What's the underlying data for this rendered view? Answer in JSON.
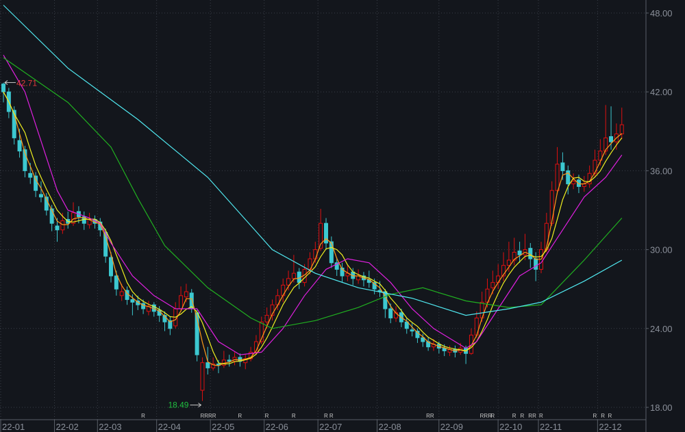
{
  "chart_data": {
    "type": "candlestick",
    "ylim": [
      18,
      48
    ],
    "y_ticks": [
      "48.00",
      "42.00",
      "36.00",
      "30.00",
      "24.00",
      "18.00"
    ],
    "y_tick_values": [
      48,
      42,
      36,
      30,
      24,
      18
    ],
    "grid": true,
    "x_ticks": [
      {
        "label": "22-01",
        "at": 0
      },
      {
        "label": "22-02",
        "at": 10
      },
      {
        "label": "22-03",
        "at": 18
      },
      {
        "label": "22-04",
        "at": 29
      },
      {
        "label": "22-05",
        "at": 39
      },
      {
        "label": "22-06",
        "at": 49
      },
      {
        "label": "22-07",
        "at": 59
      },
      {
        "label": "22-08",
        "at": 70
      },
      {
        "label": "22-09",
        "at": 81.5
      },
      {
        "label": "22-10",
        "at": 92.5
      },
      {
        "label": "22-11",
        "at": 100
      },
      {
        "label": "22-12",
        "at": 111
      }
    ],
    "colors": {
      "background": "#13161c",
      "up": "#e01010",
      "down": "#3cc8d0",
      "grid": "#3a3f48",
      "axis": "#5a5f68",
      "high_label": "#e03a3a",
      "low_label": "#20c040"
    },
    "annotations": {
      "high": {
        "text": "42.71",
        "value": 42.71,
        "at": 0
      },
      "low": {
        "text": "18.49",
        "value": 18.49,
        "at": 37
      }
    },
    "candles_ohlc": [
      [
        42.6,
        42.71,
        41.2,
        42.0
      ],
      [
        42.0,
        42.3,
        40.0,
        40.5
      ],
      [
        40.6,
        40.9,
        38.0,
        38.5
      ],
      [
        38.3,
        39.2,
        37.0,
        37.5
      ],
      [
        37.6,
        37.9,
        35.5,
        36.0
      ],
      [
        35.8,
        36.6,
        35.0,
        35.5
      ],
      [
        35.6,
        35.9,
        34.0,
        34.5
      ],
      [
        34.2,
        35.2,
        33.6,
        34.0
      ],
      [
        34.0,
        34.3,
        32.6,
        33.0
      ],
      [
        33.1,
        33.4,
        31.4,
        32.0
      ],
      [
        31.8,
        32.4,
        30.6,
        31.5
      ],
      [
        31.5,
        32.8,
        31.2,
        32.2
      ],
      [
        32.3,
        32.9,
        31.6,
        32.0
      ],
      [
        32.0,
        33.6,
        31.8,
        32.8
      ],
      [
        32.9,
        33.3,
        32.0,
        32.5
      ],
      [
        32.5,
        32.9,
        31.5,
        32.0
      ],
      [
        31.9,
        32.8,
        31.6,
        32.3
      ],
      [
        32.3,
        32.6,
        31.6,
        32.0
      ],
      [
        32.1,
        32.4,
        31.0,
        31.5
      ],
      [
        31.3,
        31.6,
        29.0,
        29.5
      ],
      [
        29.4,
        29.8,
        27.5,
        28.0
      ],
      [
        28.0,
        28.4,
        26.5,
        27.0
      ],
      [
        26.5,
        27.4,
        26.1,
        26.8
      ],
      [
        26.9,
        27.2,
        25.8,
        26.2
      ],
      [
        26.2,
        26.6,
        25.0,
        26.0
      ],
      [
        26.1,
        26.5,
        25.4,
        25.8
      ],
      [
        25.9,
        26.2,
        25.1,
        25.5
      ],
      [
        25.3,
        26.1,
        25.0,
        25.7
      ],
      [
        25.8,
        26.0,
        24.9,
        25.3
      ],
      [
        25.4,
        25.7,
        24.5,
        25.0
      ],
      [
        25.0,
        25.3,
        23.8,
        24.5
      ],
      [
        24.6,
        24.9,
        23.5,
        24.0
      ],
      [
        24.2,
        26.0,
        24.0,
        25.5
      ],
      [
        25.5,
        27.2,
        25.3,
        26.5
      ],
      [
        26.4,
        27.4,
        26.0,
        26.8
      ],
      [
        26.7,
        27.0,
        25.2,
        25.5
      ],
      [
        25.2,
        25.4,
        21.5,
        22.0
      ],
      [
        19.3,
        21.8,
        18.49,
        21.4
      ],
      [
        21.4,
        22.6,
        20.5,
        21.0
      ],
      [
        21.0,
        21.8,
        20.8,
        21.3
      ],
      [
        21.3,
        21.6,
        20.6,
        21.2
      ],
      [
        21.2,
        22.3,
        21.0,
        21.6
      ],
      [
        21.6,
        22.0,
        21.1,
        21.5
      ],
      [
        21.5,
        22.2,
        21.2,
        21.8
      ],
      [
        21.8,
        22.1,
        21.1,
        21.5
      ],
      [
        21.4,
        22.0,
        20.9,
        21.7
      ],
      [
        21.7,
        22.6,
        21.5,
        22.2
      ],
      [
        22.2,
        23.5,
        22.0,
        23.0
      ],
      [
        23.0,
        24.9,
        22.8,
        24.5
      ],
      [
        24.5,
        25.6,
        24.0,
        25.0
      ],
      [
        25.0,
        26.2,
        24.6,
        25.8
      ],
      [
        25.8,
        27.0,
        25.4,
        26.5
      ],
      [
        26.5,
        27.8,
        26.0,
        27.3
      ],
      [
        27.3,
        28.4,
        26.9,
        27.8
      ],
      [
        27.8,
        29.6,
        27.5,
        28.2
      ],
      [
        28.3,
        28.6,
        27.0,
        27.5
      ],
      [
        27.5,
        28.9,
        27.2,
        28.5
      ],
      [
        28.5,
        29.8,
        28.1,
        29.3
      ],
      [
        29.3,
        30.6,
        29.0,
        30.0
      ],
      [
        30.1,
        33.1,
        29.9,
        32.0
      ],
      [
        32.0,
        32.4,
        30.0,
        30.5
      ],
      [
        30.6,
        31.0,
        28.6,
        29.0
      ],
      [
        29.0,
        29.4,
        28.0,
        28.5
      ],
      [
        28.6,
        29.0,
        27.5,
        28.0
      ],
      [
        28.0,
        28.8,
        27.6,
        28.2
      ],
      [
        28.3,
        28.6,
        27.3,
        27.8
      ],
      [
        27.7,
        28.5,
        27.4,
        28.0
      ],
      [
        28.0,
        28.3,
        27.2,
        27.7
      ],
      [
        27.7,
        28.4,
        27.1,
        27.5
      ],
      [
        27.5,
        27.8,
        26.6,
        27.0
      ],
      [
        26.9,
        27.6,
        26.4,
        26.8
      ],
      [
        26.8,
        27.0,
        24.8,
        25.5
      ],
      [
        25.5,
        25.9,
        24.4,
        24.8
      ],
      [
        24.8,
        25.7,
        24.5,
        25.2
      ],
      [
        25.2,
        25.5,
        24.1,
        24.5
      ],
      [
        24.5,
        24.8,
        23.6,
        24.0
      ],
      [
        23.9,
        24.4,
        23.4,
        23.8
      ],
      [
        23.8,
        24.0,
        22.9,
        23.3
      ],
      [
        23.3,
        23.6,
        22.6,
        23.0
      ],
      [
        23.0,
        23.3,
        22.3,
        22.6
      ],
      [
        22.6,
        23.2,
        22.3,
        22.8
      ],
      [
        22.8,
        23.0,
        22.1,
        22.5
      ],
      [
        22.5,
        22.8,
        21.9,
        22.3
      ],
      [
        22.2,
        22.7,
        21.9,
        22.4
      ],
      [
        22.4,
        22.7,
        21.8,
        22.2
      ],
      [
        22.2,
        22.9,
        22.0,
        22.5
      ],
      [
        22.5,
        22.7,
        21.3,
        22.1
      ],
      [
        22.1,
        24.0,
        22.0,
        23.5
      ],
      [
        23.5,
        25.3,
        23.3,
        24.8
      ],
      [
        24.8,
        26.8,
        24.5,
        26.0
      ],
      [
        26.0,
        27.8,
        25.6,
        27.0
      ],
      [
        27.1,
        28.4,
        26.6,
        27.5
      ],
      [
        27.5,
        28.9,
        27.0,
        28.0
      ],
      [
        28.0,
        29.8,
        27.6,
        28.8
      ],
      [
        28.8,
        30.6,
        28.3,
        29.2
      ],
      [
        29.2,
        30.9,
        28.8,
        29.8
      ],
      [
        29.9,
        30.6,
        29.0,
        29.6
      ],
      [
        29.6,
        31.2,
        29.2,
        30.0
      ],
      [
        30.1,
        30.5,
        28.6,
        29.3
      ],
      [
        29.3,
        29.8,
        27.6,
        28.5
      ],
      [
        28.5,
        30.6,
        28.2,
        30.0
      ],
      [
        30.0,
        32.8,
        29.8,
        32.0
      ],
      [
        32.0,
        35.2,
        31.8,
        34.5
      ],
      [
        34.5,
        37.8,
        34.2,
        36.5
      ],
      [
        36.6,
        37.4,
        35.3,
        36.0
      ],
      [
        36.0,
        36.4,
        34.2,
        35.0
      ],
      [
        35.0,
        35.8,
        34.6,
        35.2
      ],
      [
        35.3,
        35.7,
        34.3,
        34.8
      ],
      [
        34.8,
        35.6,
        34.4,
        35.0
      ],
      [
        35.0,
        36.4,
        34.7,
        35.8
      ],
      [
        35.8,
        37.6,
        35.5,
        36.8
      ],
      [
        36.8,
        38.4,
        36.4,
        37.5
      ],
      [
        37.5,
        41.0,
        37.2,
        38.5
      ],
      [
        38.6,
        40.9,
        37.6,
        38.2
      ],
      [
        38.2,
        39.6,
        37.6,
        38.8
      ],
      [
        38.8,
        40.8,
        38.4,
        39.5
      ]
    ],
    "series": [
      {
        "color": "#ff9a1a",
        "moving_average_of_closes": 3
      },
      {
        "color": "#f0f020",
        "moving_average_of_closes": 5
      },
      {
        "color": "#e020e0",
        "points": [
          [
            0,
            44.8
          ],
          [
            4,
            42
          ],
          [
            8,
            37
          ],
          [
            10,
            34.5
          ],
          [
            12,
            33
          ],
          [
            16,
            32.4
          ],
          [
            18,
            32
          ],
          [
            20,
            30.5
          ],
          [
            24,
            28
          ],
          [
            28,
            26.5
          ],
          [
            32,
            25.5
          ],
          [
            36,
            25.5
          ],
          [
            40,
            23
          ],
          [
            44,
            22
          ],
          [
            48,
            22.2
          ],
          [
            52,
            24
          ],
          [
            56,
            26.5
          ],
          [
            60,
            28.5
          ],
          [
            64,
            29.3
          ],
          [
            68,
            29
          ],
          [
            72,
            27.5
          ],
          [
            76,
            25.5
          ],
          [
            80,
            24
          ],
          [
            84,
            23
          ],
          [
            86,
            22.5
          ],
          [
            88,
            23
          ],
          [
            92,
            25.5
          ],
          [
            96,
            28
          ],
          [
            100,
            29
          ],
          [
            104,
            31.5
          ],
          [
            108,
            34
          ],
          [
            112,
            35.5
          ],
          [
            115,
            37.2
          ]
        ]
      },
      {
        "color": "#20b020",
        "points": [
          [
            0,
            44.6
          ],
          [
            12,
            41.2
          ],
          [
            20,
            37.8
          ],
          [
            25,
            33.9
          ],
          [
            30,
            30.3
          ],
          [
            38,
            27.1
          ],
          [
            46,
            24.8
          ],
          [
            50,
            24
          ],
          [
            58,
            24.6
          ],
          [
            66,
            25.6
          ],
          [
            72,
            26.6
          ],
          [
            78,
            27.1
          ],
          [
            86,
            26.1
          ],
          [
            94,
            25.6
          ],
          [
            100,
            25.8
          ],
          [
            108,
            29.2
          ],
          [
            115,
            32.4
          ]
        ]
      },
      {
        "color": "#50e8f0",
        "points": [
          [
            0,
            48.6
          ],
          [
            12,
            43.8
          ],
          [
            25,
            39.9
          ],
          [
            38,
            35.5
          ],
          [
            50,
            30
          ],
          [
            58,
            28.2
          ],
          [
            66,
            27.1
          ],
          [
            76,
            26.3
          ],
          [
            86,
            25.0
          ],
          [
            94,
            25.5
          ],
          [
            100,
            26
          ],
          [
            108,
            27.6
          ],
          [
            115,
            29.2
          ]
        ]
      }
    ],
    "markers": [
      {
        "at": 26,
        "text": "R"
      },
      {
        "at": 37,
        "text": "RRRR"
      },
      {
        "at": 44,
        "text": "R"
      },
      {
        "at": 49,
        "text": "R"
      },
      {
        "at": 54,
        "text": "R"
      },
      {
        "at": 60,
        "text": "R"
      },
      {
        "at": 61,
        "text": "R"
      },
      {
        "at": 79,
        "text": "RR"
      },
      {
        "at": 89,
        "text": "RRR"
      },
      {
        "at": 91,
        "text": "R"
      },
      {
        "at": 95,
        "text": "R"
      },
      {
        "at": 96.5,
        "text": "R"
      },
      {
        "at": 98,
        "text": "RR"
      },
      {
        "at": 100,
        "text": "R"
      },
      {
        "at": 110,
        "text": "R"
      },
      {
        "at": 111.5,
        "text": "R"
      },
      {
        "at": 112.8,
        "text": "R"
      }
    ]
  }
}
